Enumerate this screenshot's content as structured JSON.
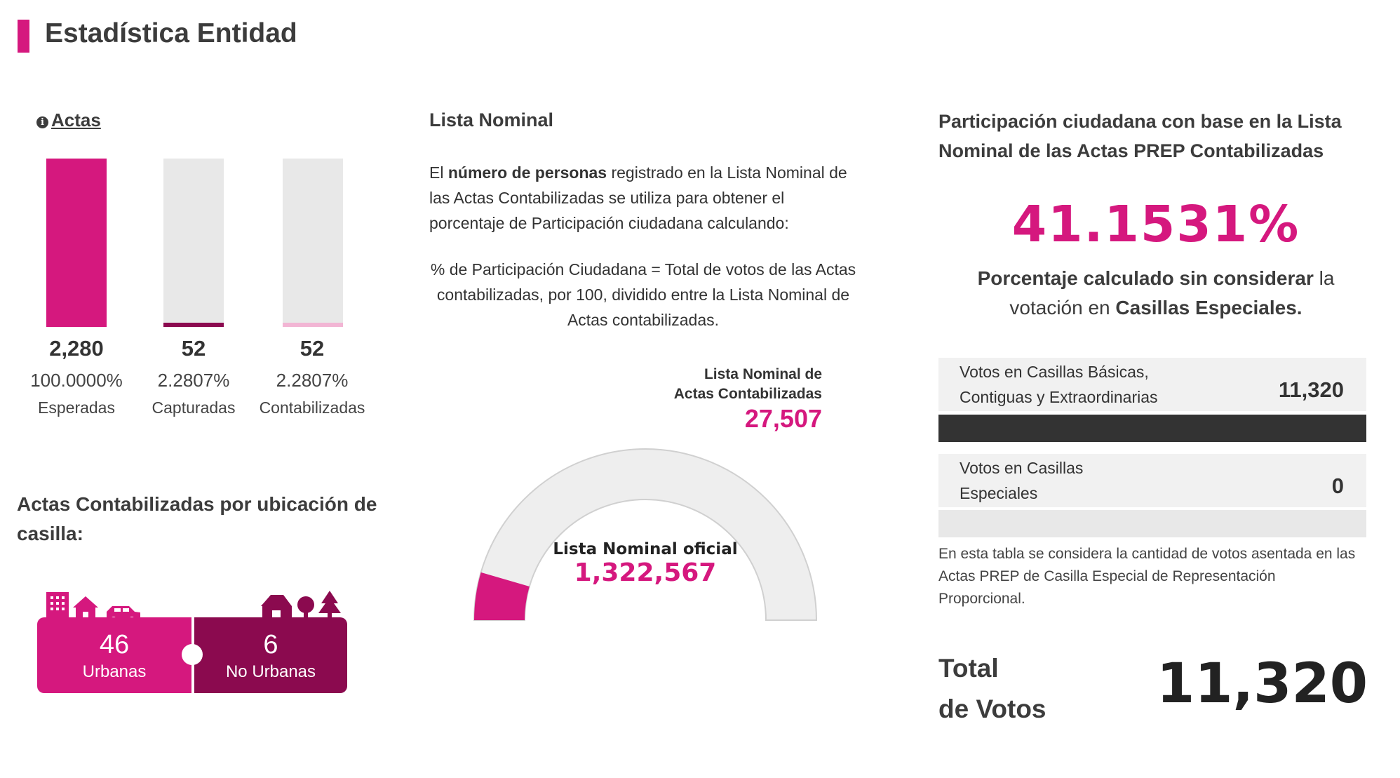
{
  "header": {
    "title": "Estadística Entidad",
    "accent_color": "#d5187e"
  },
  "actas": {
    "title": "Actas",
    "icon": "info-icon",
    "bars": [
      {
        "value": "2,280",
        "percent": "100.0000%",
        "label": "Esperadas",
        "fill_fraction": 1.0,
        "color": "#d5187e"
      },
      {
        "value": "52",
        "percent": "2.2807%",
        "label": "Capturadas",
        "fill_fraction": 0.022807,
        "color": "#8b0a4f"
      },
      {
        "value": "52",
        "percent": "2.2807%",
        "label": "Contabilizadas",
        "fill_fraction": 0.022807,
        "color": "#f2b5d4"
      }
    ]
  },
  "ubicacion": {
    "title": "Actas Contabilizadas por ubicación de casilla:",
    "urbanas": {
      "value": "46",
      "label": "Urbanas",
      "color": "#d5187e",
      "icons": [
        "building-icon",
        "house-icon",
        "car-icon"
      ]
    },
    "no_urbanas": {
      "value": "6",
      "label": "No Urbanas",
      "color": "#8b0a4f",
      "icons": [
        "barn-icon",
        "tree-icon",
        "pine-tree-icon"
      ]
    }
  },
  "lista_nominal": {
    "title": "Lista Nominal",
    "desc_before": "El ",
    "desc_bold": "número de personas",
    "desc_after": " registrado en la Lista Nominal de las Actas Contabilizadas se utiliza para obtener el porcentaje de Participación ciudadana calculando:",
    "formula": "% de Participación Ciudadana = Total de votos de las Actas contabilizadas, por 100, dividido entre la Lista Nominal de Actas contabilizadas.",
    "contabilizadas_label_1": "Lista Nominal de",
    "contabilizadas_label_2": "Actas Contabilizadas",
    "contabilizadas_value": "27,507",
    "oficial_label": "Lista Nominal oficial",
    "oficial_value": "1,322,567",
    "gauge_fraction": 0.0208
  },
  "participacion": {
    "title": "Participación ciudadana con base en la Lista Nominal de las Actas PREP Contabilizadas",
    "percent": "41.1531%",
    "note_1": "Porcentaje calculado sin considerar",
    "note_2": " la votación en ",
    "note_3": "Casillas Especiales.",
    "rows": [
      {
        "label_1": "Votos en Casillas Básicas,",
        "label_2": "Contiguas y Extraordinarias",
        "value": "11,320",
        "bar_color": "#333333",
        "bar_fraction": 1.0
      },
      {
        "label_1": "Votos en Casillas",
        "label_2": "Especiales",
        "value": "0",
        "bar_color": "#e8e8e8",
        "bar_fraction": 0.0
      }
    ],
    "small_note": "En esta tabla se considera la cantidad de votos asentada en las Actas PREP de Casilla Especial de Representación Proporcional.",
    "total_label_1": "Total",
    "total_label_2": "de Votos",
    "total_value": "11,320"
  }
}
